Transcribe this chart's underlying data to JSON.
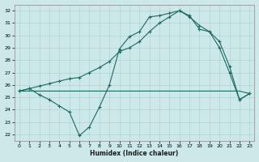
{
  "xlabel": "Humidex (Indice chaleur)",
  "ylabel": "",
  "bg_color": "#cce8e8",
  "grid_color": "#aacccc",
  "line_color": "#1a6b60",
  "xlim": [
    -0.5,
    23.5
  ],
  "ylim": [
    21.5,
    32.5
  ],
  "xticks": [
    0,
    1,
    2,
    3,
    4,
    5,
    6,
    7,
    8,
    9,
    10,
    11,
    12,
    13,
    14,
    15,
    16,
    17,
    18,
    19,
    20,
    21,
    22,
    23
  ],
  "yticks": [
    22,
    23,
    24,
    25,
    26,
    27,
    28,
    29,
    30,
    31,
    32
  ],
  "line_jagged_x": [
    0,
    1,
    2,
    3,
    4,
    5,
    6,
    7,
    8,
    9,
    10,
    11,
    12,
    13,
    14,
    15,
    16,
    17,
    18,
    19,
    20,
    21,
    22,
    23
  ],
  "line_jagged_y": [
    25.5,
    25.7,
    25.2,
    24.8,
    24.3,
    23.8,
    21.9,
    22.6,
    24.2,
    26.0,
    28.9,
    29.9,
    30.3,
    31.5,
    31.6,
    31.8,
    32.0,
    31.6,
    30.5,
    30.3,
    29.0,
    27.0,
    24.8,
    25.3
  ],
  "line_flat_x": [
    0,
    1,
    2,
    3,
    4,
    5,
    6,
    7,
    8,
    9,
    10,
    11,
    12,
    13,
    14,
    15,
    16,
    17,
    18,
    19,
    20,
    21,
    22,
    23
  ],
  "line_flat_y": [
    25.5,
    25.5,
    25.5,
    25.5,
    25.5,
    25.5,
    25.5,
    25.5,
    25.5,
    25.5,
    25.5,
    25.5,
    25.5,
    25.5,
    25.5,
    25.5,
    25.5,
    25.5,
    25.5,
    25.5,
    25.5,
    25.5,
    25.5,
    25.3
  ],
  "line_smooth_x": [
    0,
    1,
    2,
    3,
    4,
    5,
    6,
    7,
    8,
    9,
    10,
    11,
    12,
    13,
    14,
    15,
    16,
    17,
    18,
    19,
    20,
    21,
    22,
    23
  ],
  "line_smooth_y": [
    25.5,
    25.7,
    25.9,
    26.1,
    26.3,
    26.5,
    26.6,
    27.0,
    27.4,
    27.9,
    28.7,
    29.0,
    29.5,
    30.3,
    31.0,
    31.5,
    32.0,
    31.5,
    30.8,
    30.3,
    29.5,
    27.5,
    24.8,
    25.3
  ]
}
